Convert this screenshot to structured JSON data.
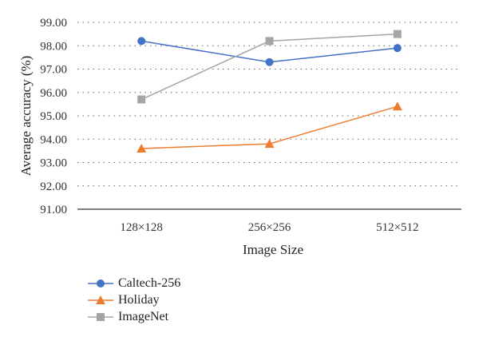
{
  "chart_data": {
    "type": "line",
    "categories": [
      "128×128",
      "256×256",
      "512×512"
    ],
    "xlabel": "Image Size",
    "ylabel": "Average accuracy (%)",
    "ylim": [
      91,
      99
    ],
    "yticks": [
      "91.00",
      "92.00",
      "93.00",
      "94.00",
      "95.00",
      "96.00",
      "97.00",
      "98.00",
      "99.00"
    ],
    "grid": "horizontal dotted",
    "legend_position": "bottom-left",
    "series": [
      {
        "name": "Caltech-256",
        "values": [
          98.2,
          97.3,
          97.9
        ],
        "color": "#4472c4",
        "marker": "circle"
      },
      {
        "name": "Holiday",
        "values": [
          93.6,
          93.8,
          95.4
        ],
        "color": "#ed7d31",
        "marker": "triangle"
      },
      {
        "name": "ImageNet",
        "values": [
          95.7,
          98.2,
          98.5
        ],
        "color": "#a5a5a5",
        "marker": "square"
      }
    ]
  }
}
